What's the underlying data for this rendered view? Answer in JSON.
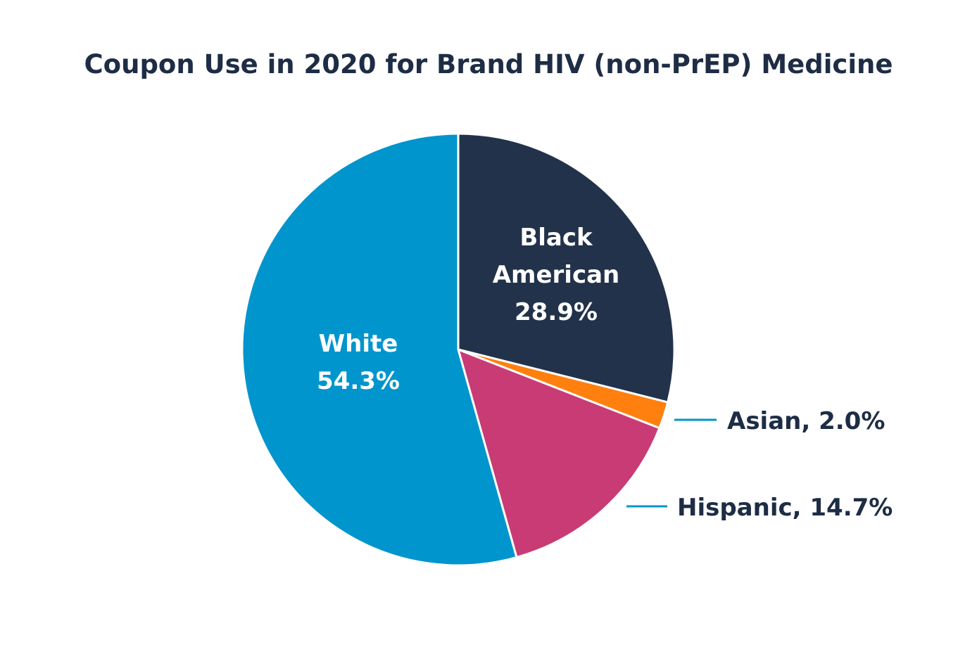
{
  "chart_data": {
    "type": "pie",
    "title": "Coupon Use in 2020 for Brand HIV (non-PrEP) Medicine",
    "slices": [
      {
        "name": "Black American",
        "value": 28.9,
        "label_lines": [
          "Black",
          "American",
          "28.9%"
        ],
        "color": "#22324a",
        "label_style": "inside"
      },
      {
        "name": "Asian",
        "value": 2.0,
        "label_lines": [
          "Asian, 2.0%"
        ],
        "color": "#ff7f0f",
        "label_style": "callout"
      },
      {
        "name": "Hispanic",
        "value": 14.7,
        "label_lines": [
          "Hispanic, 14.7%"
        ],
        "color": "#c93b75",
        "label_style": "callout"
      },
      {
        "name": "White",
        "value": 54.3,
        "label_lines": [
          "White",
          "54.3%"
        ],
        "color": "#0095cc",
        "label_style": "inside"
      }
    ],
    "start_angle": "12 o'clock",
    "direction": "clockwise",
    "callout_line_color": "#0095cc",
    "legend": "none"
  }
}
